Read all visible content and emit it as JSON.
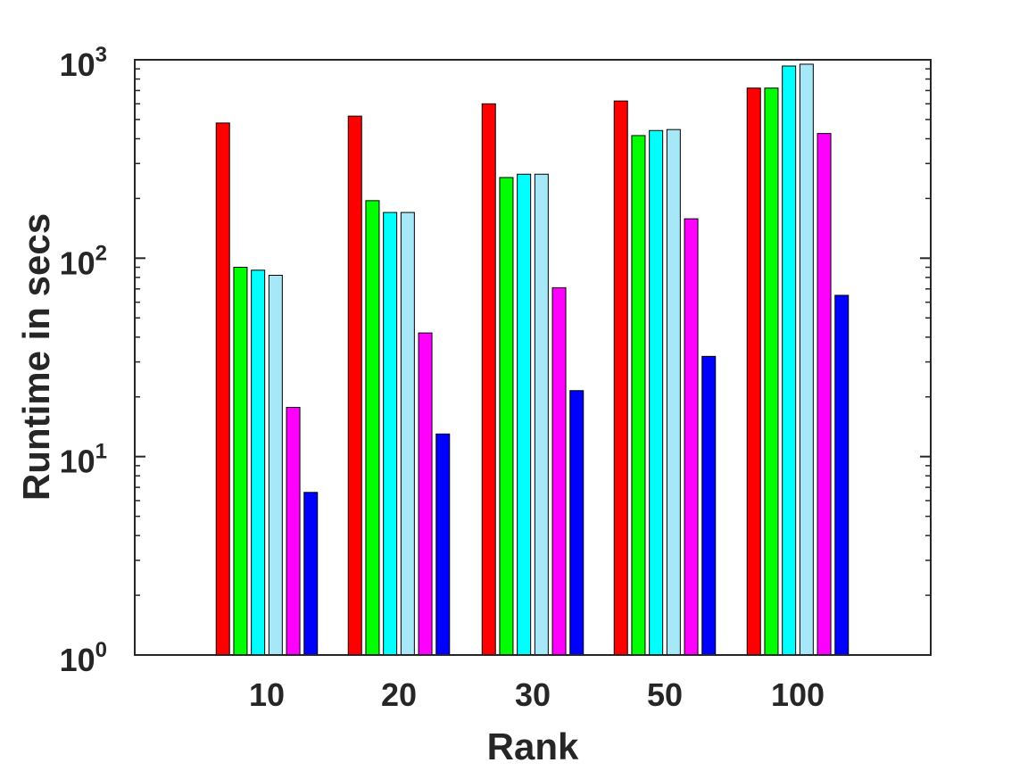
{
  "chart_data": {
    "type": "bar",
    "title": "",
    "xlabel": "Rank",
    "ylabel": "Runtime in secs",
    "yscale": "log",
    "ylim": [
      1,
      1000
    ],
    "grid": false,
    "categories": [
      "10",
      "20",
      "30",
      "50",
      "100"
    ],
    "y_ticks": [
      {
        "base": "10",
        "exp": "0"
      },
      {
        "base": "10",
        "exp": "1"
      },
      {
        "base": "10",
        "exp": "2"
      },
      {
        "base": "10",
        "exp": "3"
      }
    ],
    "series": [
      {
        "color": "#ff0000",
        "values": [
          480,
          520,
          600,
          620,
          720
        ]
      },
      {
        "color": "#00ff00",
        "values": [
          90,
          195,
          255,
          415,
          720
        ]
      },
      {
        "color": "#00ffff",
        "values": [
          87,
          170,
          265,
          440,
          930
        ]
      },
      {
        "color": "#a6e8f7",
        "values": [
          82,
          170,
          265,
          445,
          950
        ]
      },
      {
        "color": "#ff00ff",
        "values": [
          17.7,
          42,
          71,
          158,
          425
        ]
      },
      {
        "color": "#0000ff",
        "values": [
          6.6,
          13,
          21.5,
          32,
          65
        ]
      }
    ]
  }
}
